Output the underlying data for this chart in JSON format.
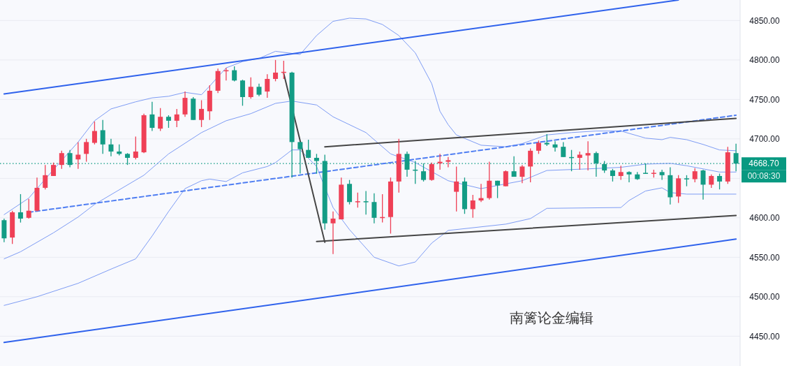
{
  "chart_data": {
    "type": "candlestick",
    "categories": [
      null,
      null,
      null,
      null,
      null,
      null,
      null,
      null,
      null,
      null,
      null,
      null,
      null,
      null,
      null,
      null,
      null,
      null,
      null,
      null,
      null,
      null,
      null,
      null,
      null,
      null,
      null,
      null,
      null,
      null,
      null,
      null,
      null,
      null,
      null,
      null,
      null,
      null,
      null,
      null,
      null,
      null,
      null,
      null,
      null,
      null,
      null,
      null,
      null,
      null,
      null,
      null,
      null,
      null,
      null,
      null,
      null,
      null,
      null,
      null,
      null,
      null,
      null,
      null,
      null,
      null,
      null,
      null,
      null,
      null,
      null,
      null,
      null,
      null,
      null,
      null,
      null,
      null,
      null,
      null,
      null,
      null,
      null,
      null,
      null,
      null,
      null,
      null,
      null,
      null
    ],
    "ohlc": [
      [
        4597,
        4599,
        4569,
        4574
      ],
      [
        4575,
        4609,
        4567,
        4607
      ],
      [
        4607,
        4630,
        4594,
        4599
      ],
      [
        4600,
        4624,
        4599,
        4609
      ],
      [
        4609,
        4651,
        4608,
        4638
      ],
      [
        4638,
        4667,
        4636,
        4654
      ],
      [
        4653,
        4670,
        4653,
        4667
      ],
      [
        4667,
        4685,
        4662,
        4682
      ],
      [
        4682,
        4686,
        4664,
        4667
      ],
      [
        4674,
        4696,
        4662,
        4680
      ],
      [
        4681,
        4700,
        4671,
        4696
      ],
      [
        4695,
        4722,
        4693,
        4710
      ],
      [
        4711,
        4724,
        4681,
        4693
      ],
      [
        4693,
        4700,
        4678,
        4684
      ],
      [
        4684,
        4693,
        4679,
        4681
      ],
      [
        4681,
        4682,
        4667,
        4676
      ],
      [
        4676,
        4703,
        4674,
        4684
      ],
      [
        4683,
        4732,
        4682,
        4730
      ],
      [
        4731,
        4747,
        4710,
        4714
      ],
      [
        4713,
        4739,
        4710,
        4728
      ],
      [
        4728,
        4730,
        4714,
        4723
      ],
      [
        4723,
        4738,
        4715,
        4731
      ],
      [
        4731,
        4760,
        4728,
        4752
      ],
      [
        4751,
        4753,
        4724,
        4724
      ],
      [
        4724,
        4749,
        4715,
        4738
      ],
      [
        4735,
        4768,
        4724,
        4761
      ],
      [
        4761,
        4789,
        4758,
        4786
      ],
      [
        4786,
        4790,
        4774,
        4787
      ],
      [
        4787,
        4792,
        4773,
        4774
      ],
      [
        4774,
        4775,
        4742,
        4753
      ],
      [
        4753,
        4778,
        4751,
        4766
      ],
      [
        4766,
        4770,
        4754,
        4756
      ],
      [
        4760,
        4782,
        4752,
        4776
      ],
      [
        4776,
        4800,
        4773,
        4784
      ],
      [
        4784,
        4799,
        4776,
        4785
      ],
      [
        4784,
        4785,
        4651,
        4696
      ],
      [
        4696,
        4696,
        4656,
        4687
      ],
      [
        4686,
        4699,
        4676,
        4676
      ],
      [
        4676,
        4681,
        4656,
        4672
      ],
      [
        4672,
        4680,
        4585,
        4593
      ],
      [
        4593,
        4608,
        4554,
        4599
      ],
      [
        4598,
        4651,
        4598,
        4642
      ],
      [
        4643,
        4648,
        4617,
        4620
      ],
      [
        4620,
        4632,
        4613,
        4621
      ],
      [
        4621,
        4634,
        4604,
        4620
      ],
      [
        4620,
        4631,
        4593,
        4600
      ],
      [
        4600,
        4630,
        4594,
        4601
      ],
      [
        4601,
        4651,
        4580,
        4646
      ],
      [
        4646,
        4700,
        4632,
        4681
      ],
      [
        4681,
        4684,
        4652,
        4661
      ],
      [
        4661,
        4672,
        4643,
        4660
      ],
      [
        4659,
        4669,
        4646,
        4648
      ],
      [
        4648,
        4670,
        4647,
        4668
      ],
      [
        4669,
        4681,
        4661,
        4671
      ],
      [
        4671,
        4677,
        4664,
        4673
      ],
      [
        4633,
        4665,
        4608,
        4646
      ],
      [
        4646,
        4651,
        4605,
        4611
      ],
      [
        4611,
        4629,
        4600,
        4622
      ],
      [
        4622,
        4643,
        4620,
        4625
      ],
      [
        4625,
        4671,
        4623,
        4647
      ],
      [
        4647,
        4647,
        4625,
        4641
      ],
      [
        4640,
        4660,
        4640,
        4659
      ],
      [
        4659,
        4678,
        4652,
        4652
      ],
      [
        4652,
        4667,
        4644,
        4665
      ],
      [
        4665,
        4688,
        4645,
        4685
      ],
      [
        4685,
        4698,
        4681,
        4695
      ],
      [
        4695,
        4706,
        4691,
        4693
      ],
      [
        4693,
        4697,
        4684,
        4689
      ],
      [
        4690,
        4696,
        4677,
        4677
      ],
      [
        4677,
        4686,
        4659,
        4676
      ],
      [
        4676,
        4684,
        4661,
        4680
      ],
      [
        4679,
        4697,
        4660,
        4682
      ],
      [
        4682,
        4684,
        4652,
        4669
      ],
      [
        4668,
        4672,
        4657,
        4660
      ],
      [
        4660,
        4662,
        4646,
        4653
      ],
      [
        4653,
        4666,
        4648,
        4658
      ],
      [
        4658,
        4659,
        4645,
        4655
      ],
      [
        4655,
        4658,
        4648,
        4649
      ],
      [
        4657,
        4669,
        4656,
        4656
      ],
      [
        4656,
        4661,
        4651,
        4657
      ],
      [
        4658,
        4661,
        4648,
        4654
      ],
      [
        4654,
        4664,
        4617,
        4626
      ],
      [
        4627,
        4654,
        4619,
        4650
      ],
      [
        4650,
        4654,
        4640,
        4649
      ],
      [
        4649,
        4663,
        4645,
        4659
      ],
      [
        4660,
        4661,
        4623,
        4642
      ],
      [
        4642,
        4655,
        4638,
        4653
      ],
      [
        4653,
        4656,
        4636,
        4646
      ],
      [
        4646,
        4690,
        4643,
        4683
      ],
      [
        4682,
        4694,
        4659,
        4668.7
      ]
    ],
    "colors": [
      "#139c85",
      "#ef4056",
      "#139c85",
      "#ef4056",
      "#ef4056",
      "#ef4056",
      "#ef4056",
      "#ef4056",
      "#139c85",
      "#ef4056",
      "#ef4056",
      "#ef4056",
      "#139c85",
      "#139c85",
      "#139c85",
      "#139c85",
      "#ef4056",
      "#ef4056",
      "#139c85",
      "#ef4056",
      "#139c85",
      "#ef4056",
      "#ef4056",
      "#139c85",
      "#ef4056",
      "#ef4056",
      "#ef4056",
      "#ef4056",
      "#139c85",
      "#139c85",
      "#ef4056",
      "#139c85",
      "#ef4056",
      "#ef4056",
      "#ef4056",
      "#139c85",
      "#139c85",
      "#139c85",
      "#139c85",
      "#139c85",
      "#ef4056",
      "#ef4056",
      "#139c85",
      "#ef4056",
      "#139c85",
      "#139c85",
      "#ef4056",
      "#ef4056",
      "#ef4056",
      "#139c85",
      "#139c85",
      "#139c85",
      "#ef4056",
      "#ef4056",
      "#ef4056",
      "#ef4056",
      "#139c85",
      "#ef4056",
      "#ef4056",
      "#ef4056",
      "#139c85",
      "#ef4056",
      "#139c85",
      "#ef4056",
      "#ef4056",
      "#ef4056",
      "#139c85",
      "#139c85",
      "#139c85",
      "#139c85",
      "#ef4056",
      "#ef4056",
      "#139c85",
      "#139c85",
      "#139c85",
      "#ef4056",
      "#139c85",
      "#139c85",
      "#139c85",
      "#ef4056",
      "#139c85",
      "#139c85",
      "#ef4056",
      "#139c85",
      "#ef4056",
      "#139c85",
      "#ef4056",
      "#139c85",
      "#ef4056",
      "#139c85"
    ],
    "series": [
      {
        "type": "line",
        "color": "#7e9cf4",
        "values": [
          4604,
          null,
          null,
          4625,
          null,
          null,
          4661,
          null,
          null,
          4696,
          null,
          4723,
          null,
          4738,
          null,
          null,
          4747,
          null,
          4752,
          null,
          4754,
          null,
          4759,
          null,
          4756,
          4767,
          null,
          4790,
          null,
          4798,
          null,
          4802,
          null,
          4811,
          null,
          null,
          4807,
          null,
          4831,
          null,
          4849,
          null,
          4853,
          null,
          4852,
          null,
          4845,
          null,
          4831,
          null,
          4809,
          null,
          4770,
          4735,
          4718,
          4705,
          null,
          null,
          4692,
          null,
          null,
          4690,
          null,
          4694,
          null,
          null,
          4705,
          null,
          null,
          4708,
          null,
          null,
          4710,
          null,
          null,
          4710,
          null,
          null,
          4701,
          null,
          4699,
          4702,
          null,
          4699,
          null,
          4693,
          null,
          4686,
          null,
          4685
        ]
      },
      {
        "type": "line",
        "color": "#7e9cf4",
        "values": [
          4548,
          null,
          4557,
          null,
          null,
          null,
          4581,
          null,
          null,
          4601,
          null,
          4617,
          null,
          null,
          null,
          null,
          null,
          4654,
          null,
          null,
          4681,
          null,
          null,
          null,
          4708,
          null,
          null,
          4723,
          null,
          null,
          4732,
          null,
          null,
          4745,
          null,
          4748,
          null,
          null,
          4743,
          null,
          4728,
          null,
          null,
          null,
          4708,
          null,
          null,
          4681,
          null,
          null,
          4670,
          null,
          null,
          null,
          4647,
          null,
          null,
          null,
          4637,
          null,
          null,
          null,
          null,
          4647,
          null,
          null,
          4660,
          null,
          null,
          null,
          null,
          4662,
          null,
          null,
          null,
          4664,
          null,
          null,
          4668,
          null,
          null,
          4669,
          null,
          4666,
          null,
          null,
          null,
          4658,
          null,
          4658
        ]
      },
      {
        "type": "line",
        "color": "#7e9cf4",
        "values": [
          4489,
          null,
          null,
          null,
          4500,
          null,
          null,
          null,
          null,
          4517,
          null,
          null,
          null,
          4535,
          null,
          null,
          4548,
          null,
          4577,
          null,
          4608,
          null,
          4637,
          null,
          4647,
          4649,
          null,
          4646,
          null,
          4657,
          null,
          null,
          4665,
          4670,
          null,
          4686,
          4686,
          null,
          4665,
          null,
          4613,
          null,
          4585,
          null,
          null,
          4550,
          null,
          null,
          4539,
          null,
          4544,
          null,
          4568,
          null,
          4584,
          null,
          null,
          null,
          null,
          null,
          null,
          4592,
          null,
          null,
          4599,
          null,
          4612,
          null,
          null,
          null,
          null,
          null,
          null,
          null,
          null,
          4613,
          4622,
          null,
          4634,
          null,
          4638,
          4632,
          null,
          4630,
          null,
          null,
          null,
          null,
          null,
          4630
        ]
      },
      {
        "type": "line",
        "color": "#2f62ec",
        "values": [
          4757,
          null,
          null,
          null,
          null,
          null,
          null,
          null,
          null,
          null,
          null,
          null,
          null,
          null,
          null,
          null,
          null,
          null,
          null,
          null,
          null,
          null,
          null,
          null,
          null,
          null,
          null,
          null,
          null,
          null,
          null,
          null,
          null,
          null,
          null,
          null,
          null,
          null,
          null,
          null,
          null,
          null,
          null,
          null,
          null,
          null,
          null,
          null,
          null,
          null,
          null,
          null,
          null,
          null,
          null,
          null,
          null,
          null,
          null,
          null,
          null,
          null,
          null,
          null,
          null,
          null,
          null,
          null,
          null,
          null,
          null,
          null,
          null,
          null,
          null,
          null,
          null,
          null,
          null,
          null,
          null,
          null,
          4876,
          null,
          null,
          null,
          null,
          null,
          null,
          null
        ]
      },
      {
        "type": "line",
        "color": "#2f62ec",
        "values": [
          4442,
          null,
          null,
          null,
          null,
          null,
          null,
          null,
          null,
          null,
          null,
          null,
          null,
          null,
          null,
          null,
          null,
          null,
          null,
          null,
          null,
          null,
          null,
          null,
          null,
          null,
          null,
          null,
          null,
          null,
          null,
          null,
          null,
          null,
          null,
          null,
          null,
          null,
          null,
          null,
          null,
          null,
          null,
          null,
          null,
          null,
          null,
          null,
          null,
          null,
          null,
          null,
          null,
          null,
          null,
          null,
          null,
          null,
          null,
          null,
          null,
          null,
          null,
          null,
          null,
          null,
          null,
          null,
          null,
          null,
          null,
          null,
          null,
          null,
          null,
          null,
          null,
          null,
          null,
          null,
          null,
          null,
          null,
          null,
          null,
          null,
          null,
          null,
          null,
          4573
        ]
      },
      {
        "type": "line",
        "color": "#4f7ef2",
        "line_style": "dashed",
        "values": [
          null,
          null,
          null,
          4607,
          null,
          null,
          null,
          null,
          null,
          null,
          null,
          null,
          null,
          null,
          null,
          null,
          null,
          null,
          null,
          null,
          null,
          null,
          null,
          null,
          null,
          null,
          null,
          null,
          null,
          null,
          null,
          null,
          null,
          null,
          null,
          null,
          null,
          null,
          null,
          null,
          null,
          null,
          null,
          null,
          null,
          null,
          null,
          null,
          null,
          null,
          null,
          null,
          null,
          null,
          null,
          null,
          null,
          null,
          null,
          null,
          null,
          null,
          null,
          null,
          null,
          null,
          null,
          null,
          null,
          null,
          null,
          null,
          null,
          null,
          null,
          null,
          null,
          null,
          null,
          null,
          null,
          null,
          null,
          null,
          null,
          null,
          null,
          null,
          null,
          4730
        ]
      },
      {
        "type": "line",
        "color": "#454545",
        "values": [
          null,
          null,
          null,
          null,
          null,
          null,
          null,
          null,
          null,
          null,
          null,
          null,
          null,
          null,
          null,
          null,
          null,
          null,
          null,
          null,
          null,
          null,
          null,
          null,
          null,
          null,
          null,
          null,
          null,
          null,
          null,
          null,
          null,
          null,
          4783,
          null,
          null,
          null,
          null,
          4569,
          null,
          null,
          null,
          null,
          null,
          null,
          null,
          null,
          null,
          null,
          null,
          null,
          null,
          null,
          null,
          null,
          null,
          null,
          null,
          null,
          null,
          null,
          null,
          null,
          null,
          null,
          null,
          null,
          null,
          null,
          null,
          null,
          null,
          null,
          null,
          null,
          null,
          null,
          null,
          null,
          null,
          null,
          null,
          null,
          null,
          null,
          null,
          null,
          null,
          null
        ]
      },
      {
        "type": "line",
        "color": "#454545",
        "values": [
          null,
          null,
          null,
          null,
          null,
          null,
          null,
          null,
          null,
          null,
          null,
          null,
          null,
          null,
          null,
          null,
          null,
          null,
          null,
          null,
          null,
          null,
          null,
          null,
          null,
          null,
          null,
          null,
          null,
          null,
          null,
          null,
          null,
          null,
          null,
          null,
          null,
          null,
          null,
          4690,
          null,
          null,
          null,
          null,
          null,
          null,
          null,
          null,
          null,
          null,
          null,
          null,
          null,
          null,
          null,
          null,
          null,
          null,
          null,
          null,
          null,
          null,
          null,
          null,
          null,
          null,
          null,
          null,
          null,
          null,
          null,
          null,
          null,
          null,
          null,
          null,
          null,
          null,
          null,
          null,
          null,
          null,
          null,
          null,
          null,
          null,
          null,
          null,
          null,
          4726
        ]
      },
      {
        "type": "line",
        "color": "#454545",
        "values": [
          null,
          null,
          null,
          null,
          null,
          null,
          null,
          null,
          null,
          null,
          null,
          null,
          null,
          null,
          null,
          null,
          null,
          null,
          null,
          null,
          null,
          null,
          null,
          null,
          null,
          null,
          null,
          null,
          null,
          null,
          null,
          null,
          null,
          null,
          null,
          null,
          null,
          null,
          4570,
          null,
          null,
          null,
          null,
          null,
          null,
          null,
          null,
          null,
          null,
          null,
          null,
          null,
          null,
          null,
          null,
          null,
          null,
          null,
          null,
          null,
          null,
          null,
          null,
          null,
          null,
          null,
          null,
          null,
          null,
          null,
          null,
          null,
          null,
          null,
          null,
          null,
          null,
          null,
          null,
          null,
          null,
          null,
          null,
          null,
          null,
          null,
          null,
          null,
          null,
          4603
        ]
      }
    ],
    "ylim": [
      4414,
      4876
    ],
    "yticks": [
      {
        "value": 4450,
        "label": "4450.00"
      },
      {
        "value": 4500,
        "label": "4500.00"
      },
      {
        "value": 4550,
        "label": "4550.00"
      },
      {
        "value": 4600,
        "label": "4600.00"
      },
      {
        "value": 4650,
        "label": null
      },
      {
        "value": 4700,
        "label": "4700.00"
      },
      {
        "value": 4750,
        "label": "4750.00"
      },
      {
        "value": 4800,
        "label": "4800.00"
      },
      {
        "value": 4850,
        "label": "4850.00"
      }
    ],
    "grid": "y",
    "tick_labels": "y",
    "ref_lines": [
      {
        "axis": "y",
        "value": 4668.7,
        "label": "4668.70",
        "color": "#089981",
        "line_style": "dotted"
      }
    ],
    "annotations": [
      "00:08:30",
      "南篱论金编辑"
    ]
  }
}
